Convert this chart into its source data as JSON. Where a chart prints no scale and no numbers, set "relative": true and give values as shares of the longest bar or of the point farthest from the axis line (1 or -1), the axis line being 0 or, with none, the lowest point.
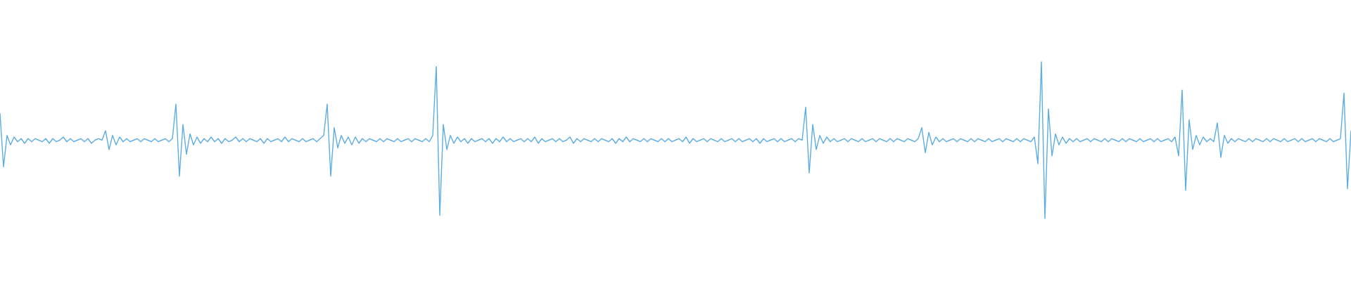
{
  "chart_data": {
    "type": "line",
    "relative": true,
    "categories": [
      null,
      null,
      null,
      null,
      null,
      null,
      null,
      null,
      null,
      null,
      null,
      null,
      null,
      null,
      null,
      null,
      null,
      null,
      null,
      null,
      null,
      null,
      null,
      null,
      null,
      null,
      null,
      null,
      null,
      null,
      null,
      null,
      null,
      null,
      null,
      null,
      null,
      null,
      null,
      null,
      null,
      null,
      null,
      null,
      null,
      null,
      null,
      null,
      null,
      null,
      null,
      null,
      null,
      null,
      null,
      null,
      null,
      null,
      null,
      null,
      null,
      null,
      null,
      null,
      null,
      null,
      null,
      null,
      null,
      null,
      null,
      null,
      null,
      null,
      null,
      null,
      null,
      null,
      null,
      null,
      null,
      null,
      null,
      null,
      null,
      null,
      null,
      null,
      null,
      null,
      null,
      null,
      null,
      null,
      null,
      null,
      null,
      null,
      null,
      null,
      null,
      null,
      null,
      null,
      null,
      null,
      null,
      null,
      null,
      null,
      null,
      null,
      null,
      null,
      null,
      null,
      null,
      null,
      null,
      null,
      null,
      null,
      null,
      null,
      null,
      null,
      null,
      null,
      null,
      null,
      null,
      null,
      null,
      null,
      null,
      null,
      null,
      null,
      null,
      null,
      null,
      null,
      null,
      null,
      null,
      null,
      null,
      null,
      null,
      null,
      null,
      null,
      null,
      null,
      null,
      null,
      null,
      null,
      null,
      null,
      null,
      null,
      null,
      null,
      null,
      null,
      null,
      null,
      null,
      null,
      null,
      null,
      null,
      null,
      null,
      null,
      null,
      null,
      null,
      null,
      null,
      null,
      null,
      null,
      null,
      null,
      null,
      null,
      null,
      null,
      null,
      null,
      null,
      null,
      null,
      null,
      null,
      null,
      null,
      null,
      null,
      null,
      null,
      null,
      null,
      null,
      null,
      null,
      null,
      null,
      null,
      null,
      null,
      null,
      null,
      null,
      null,
      null,
      null,
      null,
      null,
      null,
      null,
      null,
      null,
      null,
      null,
      null,
      null,
      null,
      null,
      null,
      null,
      null,
      null,
      null,
      null,
      null,
      null,
      null,
      null,
      null,
      null,
      null,
      null,
      null,
      null,
      null,
      null,
      null,
      null,
      null,
      null,
      null,
      null,
      null,
      null,
      null,
      null,
      null,
      null,
      null,
      null,
      null,
      null,
      null,
      null,
      null,
      null,
      null,
      null,
      null,
      null,
      null,
      null,
      null,
      null,
      null,
      null,
      null,
      null,
      null,
      null,
      null,
      null,
      null,
      null,
      null,
      null,
      null,
      null,
      null,
      null,
      null,
      null,
      null,
      null,
      null,
      null,
      null,
      null,
      null,
      null,
      null,
      null,
      null,
      null,
      null,
      null,
      null,
      null,
      null,
      null,
      null,
      null,
      null,
      null,
      null,
      null,
      null,
      null,
      null,
      null,
      null,
      null,
      null,
      null,
      null,
      null,
      null,
      null,
      null,
      null,
      null,
      null,
      null,
      null,
      null,
      null,
      null,
      null,
      null,
      null,
      null,
      null,
      null,
      null,
      null,
      null,
      null,
      null,
      null,
      null,
      null,
      null,
      null,
      null,
      null,
      null,
      null,
      null,
      null,
      null,
      null,
      null,
      null,
      null,
      null,
      null,
      null,
      null,
      null,
      null,
      null,
      null,
      null,
      null,
      null,
      null,
      null,
      null,
      null,
      null,
      null,
      null
    ],
    "series": [
      {
        "color": "#5dade2",
        "values": [
          0.67,
          0.33,
          0.53,
          0.47,
          0.52,
          0.49,
          0.51,
          0.48,
          0.51,
          0.49,
          0.51,
          0.5,
          0.49,
          0.51,
          0.48,
          0.51,
          0.49,
          0.5,
          0.52,
          0.49,
          0.51,
          0.49,
          0.5,
          0.51,
          0.49,
          0.51,
          0.48,
          0.5,
          0.51,
          0.5,
          0.56,
          0.44,
          0.53,
          0.47,
          0.52,
          0.49,
          0.51,
          0.49,
          0.5,
          0.51,
          0.49,
          0.51,
          0.5,
          0.49,
          0.51,
          0.49,
          0.5,
          0.51,
          0.49,
          0.51,
          0.73,
          0.27,
          0.6,
          0.41,
          0.54,
          0.47,
          0.52,
          0.48,
          0.51,
          0.49,
          0.52,
          0.49,
          0.51,
          0.48,
          0.51,
          0.49,
          0.5,
          0.52,
          0.49,
          0.51,
          0.49,
          0.51,
          0.5,
          0.49,
          0.51,
          0.48,
          0.51,
          0.49,
          0.5,
          0.51,
          0.49,
          0.52,
          0.49,
          0.51,
          0.5,
          0.49,
          0.51,
          0.49,
          0.5,
          0.51,
          0.49,
          0.51,
          0.53,
          0.73,
          0.27,
          0.58,
          0.45,
          0.53,
          0.48,
          0.52,
          0.47,
          0.52,
          0.48,
          0.51,
          0.49,
          0.51,
          0.5,
          0.49,
          0.51,
          0.49,
          0.51,
          0.5,
          0.49,
          0.51,
          0.49,
          0.5,
          0.51,
          0.49,
          0.51,
          0.5,
          0.49,
          0.51,
          0.49,
          0.53,
          0.97,
          0.02,
          0.6,
          0.44,
          0.53,
          0.48,
          0.52,
          0.49,
          0.51,
          0.48,
          0.51,
          0.49,
          0.5,
          0.51,
          0.49,
          0.51,
          0.48,
          0.51,
          0.49,
          0.52,
          0.49,
          0.51,
          0.49,
          0.5,
          0.51,
          0.49,
          0.51,
          0.49,
          0.52,
          0.48,
          0.51,
          0.49,
          0.5,
          0.51,
          0.49,
          0.51,
          0.49,
          0.5,
          0.52,
          0.48,
          0.51,
          0.49,
          0.51,
          0.5,
          0.49,
          0.51,
          0.49,
          0.51,
          0.5,
          0.49,
          0.51,
          0.48,
          0.51,
          0.49,
          0.52,
          0.49,
          0.51,
          0.5,
          0.49,
          0.51,
          0.49,
          0.51,
          0.5,
          0.49,
          0.51,
          0.49,
          0.51,
          0.49,
          0.5,
          0.51,
          0.49,
          0.52,
          0.48,
          0.51,
          0.49,
          0.5,
          0.51,
          0.49,
          0.51,
          0.5,
          0.49,
          0.51,
          0.49,
          0.5,
          0.51,
          0.49,
          0.51,
          0.49,
          0.5,
          0.51,
          0.49,
          0.51,
          0.48,
          0.51,
          0.49,
          0.5,
          0.51,
          0.49,
          0.51,
          0.49,
          0.5,
          0.51,
          0.49,
          0.51,
          0.5,
          0.71,
          0.29,
          0.6,
          0.44,
          0.53,
          0.48,
          0.52,
          0.49,
          0.51,
          0.49,
          0.5,
          0.51,
          0.49,
          0.51,
          0.5,
          0.49,
          0.51,
          0.49,
          0.5,
          0.51,
          0.49,
          0.51,
          0.5,
          0.49,
          0.51,
          0.49,
          0.51,
          0.5,
          0.49,
          0.51,
          0.5,
          0.49,
          0.51,
          0.58,
          0.42,
          0.55,
          0.47,
          0.52,
          0.49,
          0.51,
          0.49,
          0.5,
          0.51,
          0.49,
          0.51,
          0.5,
          0.49,
          0.51,
          0.49,
          0.51,
          0.5,
          0.49,
          0.51,
          0.49,
          0.5,
          0.51,
          0.49,
          0.51,
          0.5,
          0.49,
          0.51,
          0.49,
          0.51,
          0.5,
          0.49,
          0.52,
          0.35,
          1,
          0,
          0.7,
          0.4,
          0.54,
          0.47,
          0.52,
          0.48,
          0.51,
          0.49,
          0.51,
          0.49,
          0.5,
          0.51,
          0.49,
          0.51,
          0.5,
          0.49,
          0.51,
          0.49,
          0.51,
          0.5,
          0.49,
          0.51,
          0.49,
          0.51,
          0.5,
          0.49,
          0.51,
          0.49,
          0.5,
          0.51,
          0.49,
          0.51,
          0.49,
          0.5,
          0.51,
          0.49,
          0.52,
          0.4,
          0.82,
          0.18,
          0.63,
          0.44,
          0.53,
          0.47,
          0.52,
          0.49,
          0.51,
          0.49,
          0.61,
          0.39,
          0.53,
          0.48,
          0.51,
          0.49,
          0.51,
          0.5,
          0.49,
          0.51,
          0.49,
          0.51,
          0.5,
          0.49,
          0.51,
          0.49,
          0.51,
          0.5,
          0.49,
          0.51,
          0.49,
          0.5,
          0.51,
          0.49,
          0.51,
          0.49,
          0.5,
          0.51,
          0.49,
          0.51,
          0.5,
          0.49,
          0.51,
          0.49,
          0.5,
          0.51,
          0.8,
          0.19,
          0.56
        ]
      }
    ]
  }
}
